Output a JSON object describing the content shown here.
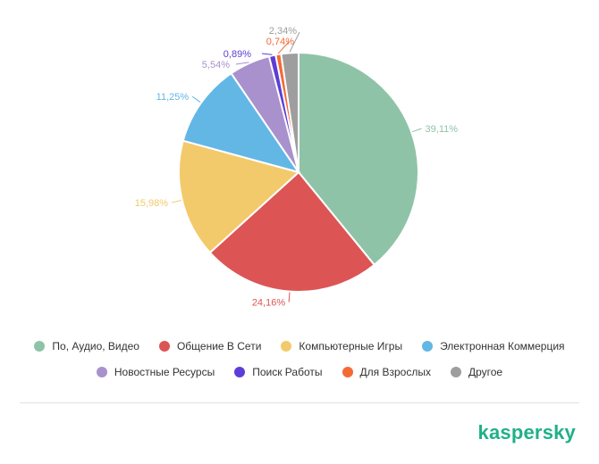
{
  "chart_data": {
    "type": "pie",
    "title": "",
    "series": [
      {
        "name": "По, Аудио, Видео",
        "value": 39.11,
        "label": "39,11%",
        "color": "#8fc3a7"
      },
      {
        "name": "Общение В Сети",
        "value": 24.16,
        "label": "24,16%",
        "color": "#dd5455"
      },
      {
        "name": "Компьютерные Игры",
        "value": 15.98,
        "label": "15,98%",
        "color": "#f2ca6b"
      },
      {
        "name": "Электронная Коммерция",
        "value": 11.25,
        "label": "11,25%",
        "color": "#62b7e5"
      },
      {
        "name": "Новостные Ресурсы",
        "value": 5.54,
        "label": "5,54%",
        "color": "#a891cc"
      },
      {
        "name": "Поиск Работы",
        "value": 0.89,
        "label": "0,89%",
        "color": "#5c3ed6"
      },
      {
        "name": "Для Взрослых",
        "value": 0.74,
        "label": "0,74%",
        "color": "#f46a36"
      },
      {
        "name": "Другое",
        "value": 2.34,
        "label": "2,34%",
        "color": "#9e9e9e"
      }
    ],
    "legend_position": "bottom"
  },
  "brand": {
    "logo_text": "kaspersky",
    "color": "#1fb189"
  }
}
